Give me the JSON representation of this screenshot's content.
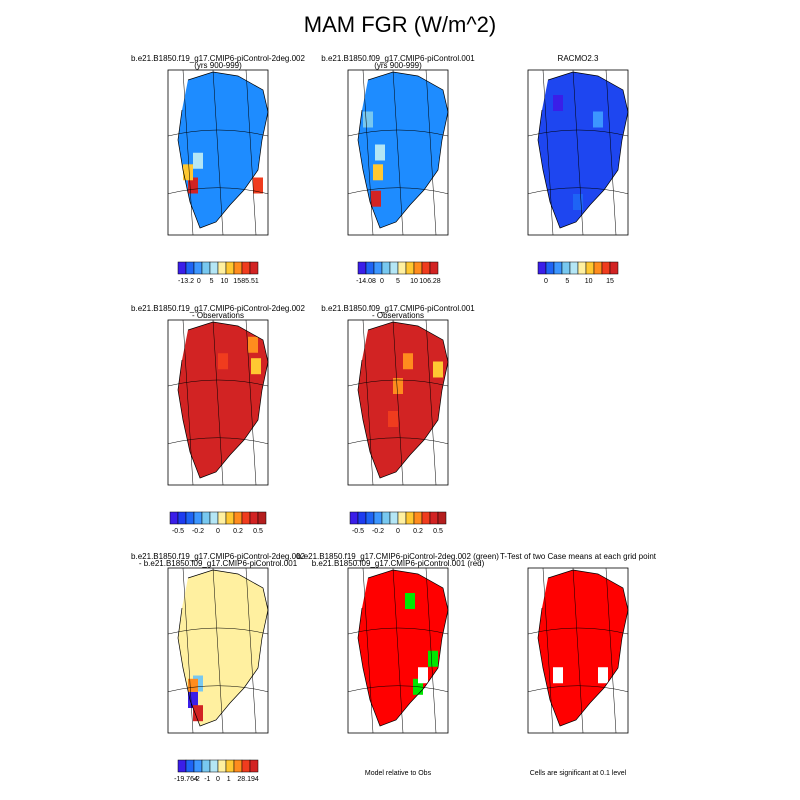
{
  "title": "MAM FGR (W/m^2)",
  "panels": [
    {
      "title": [
        "b.e21.B1850.f19_g17.CMIP6-piControl-2deg.002",
        "(yrs 900-999)"
      ],
      "colorbar": {
        "colors": [
          "#3a1ee8",
          "#1e64f5",
          "#3c96ff",
          "#78c8f0",
          "#b4e6f5",
          "#fff0a0",
          "#ffc832",
          "#ff8c1e",
          "#f03c1e",
          "#d22323"
        ],
        "labels": [
          "-13.2",
          "0",
          "5",
          "10",
          "15",
          "85.51"
        ]
      }
    },
    {
      "title": [
        "b.e21.B1850.f09_g17.CMIP6-piControl.001",
        "(yrs 900-999)"
      ],
      "colorbar": {
        "colors": [
          "#3a1ee8",
          "#1e64f5",
          "#3c96ff",
          "#78c8f0",
          "#b4e6f5",
          "#fff0a0",
          "#ffc832",
          "#ff8c1e",
          "#f03c1e",
          "#d22323"
        ],
        "labels": [
          "-14.08",
          "0",
          "5",
          "10",
          "106.28"
        ]
      }
    },
    {
      "title": [
        "RACMO2.3"
      ],
      "colorbar": {
        "colors": [
          "#3a1ee8",
          "#1e64f5",
          "#3c96ff",
          "#78c8f0",
          "#b4e6f5",
          "#fff0a0",
          "#ffc832",
          "#ff8c1e",
          "#f03c1e",
          "#d22323"
        ],
        "labels": [
          "0",
          "5",
          "10",
          "15"
        ]
      }
    },
    {
      "title": [
        "b.e21.B1850.f19_g17.CMIP6-piControl-2deg.002",
        "- Observations"
      ],
      "colorbar": {
        "colors": [
          "#3a1ee8",
          "#1e3cf0",
          "#1e64f5",
          "#3c96ff",
          "#78c8f0",
          "#b4e6f5",
          "#fff0a0",
          "#ffc832",
          "#ff8c1e",
          "#f03c1e",
          "#d22323",
          "#b41e1e"
        ],
        "labels": [
          "-0.5",
          "-0.2",
          "0",
          "0.2",
          "0.5"
        ]
      }
    },
    {
      "title": [
        "b.e21.B1850.f09_g17.CMIP6-piControl.001",
        "- Observations"
      ],
      "colorbar": {
        "colors": [
          "#3a1ee8",
          "#1e3cf0",
          "#1e64f5",
          "#3c96ff",
          "#78c8f0",
          "#b4e6f5",
          "#fff0a0",
          "#ffc832",
          "#ff8c1e",
          "#f03c1e",
          "#d22323",
          "#b41e1e"
        ],
        "labels": [
          "-0.5",
          "-0.2",
          "0",
          "0.2",
          "0.5"
        ]
      }
    },
    null,
    {
      "title": [
        "b.e21.B1850.f19_g17.CMIP6-piControl-2deg.002",
        "- b.e21.B1850.f09_g17.CMIP6-piControl.001"
      ],
      "colorbar": {
        "colors": [
          "#3a1ee8",
          "#1e64f5",
          "#3c96ff",
          "#78c8f0",
          "#b4e6f5",
          "#fff0a0",
          "#ffc832",
          "#ff8c1e",
          "#f03c1e",
          "#d22323"
        ],
        "labels": [
          "-19.764",
          "-2",
          "-1",
          "0",
          "1",
          "2",
          "8.194"
        ]
      }
    },
    {
      "title": [
        "b.e21.B1850.f19_g17.CMIP6-piControl-2deg.002 (green)",
        "b.e21.B1850.f09_g17.CMIP6-piControl.001 (red)"
      ],
      "footer": "Model relative to Obs"
    },
    {
      "title": [
        "T-Test of two Case means at each grid point"
      ],
      "footer": "Cells are significant at 0.1 level"
    }
  ]
}
